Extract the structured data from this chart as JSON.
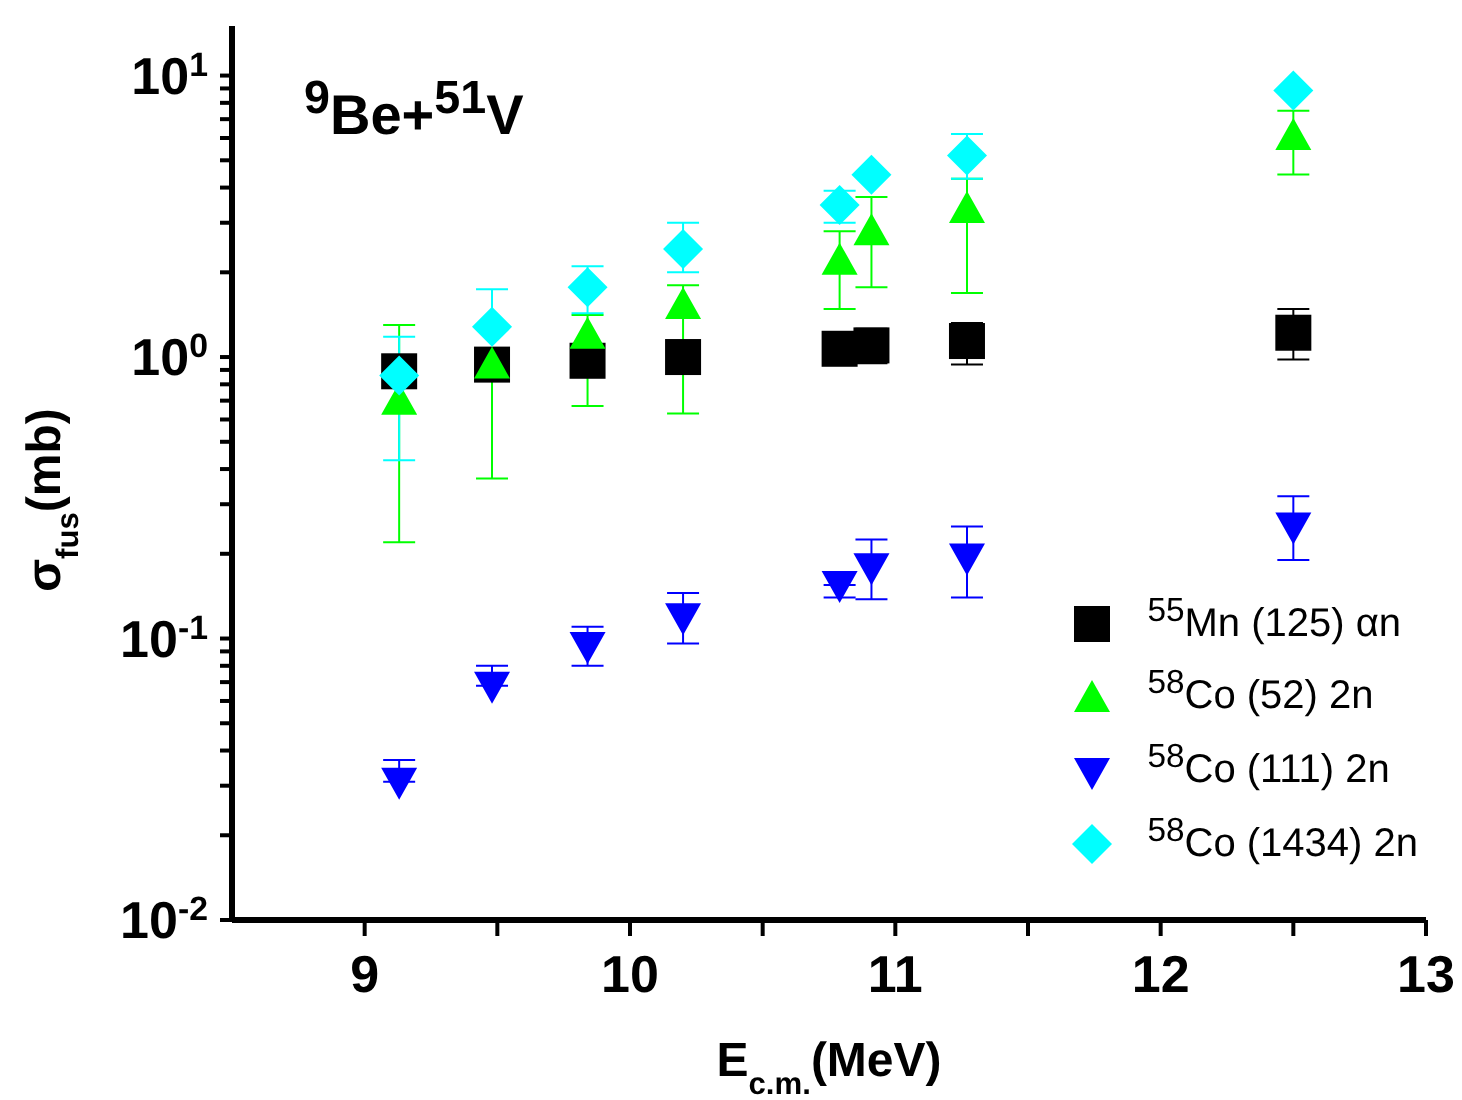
{
  "chart_data": {
    "type": "scatter",
    "xlabel": "E$_{c.m.}$(MeV)",
    "ylabel": "σ$_{fus}$(mb)",
    "annotations": [
      "$^{9}$Be+$^{51}$V"
    ],
    "x": [
      9.13,
      9.48,
      9.84,
      10.2,
      10.79,
      10.91,
      11.27,
      12.5
    ],
    "series": [
      {
        "name": "$^{55}$Mn (125) αn",
        "color": "#000000",
        "marker": "square",
        "values": [
          0.89,
          0.94,
          0.97,
          1.0,
          1.07,
          1.1,
          1.14,
          1.22
        ],
        "errors": [
          null,
          null,
          null,
          null,
          null,
          [
            0.95,
            1.26
          ],
          [
            0.94,
            1.32
          ],
          [
            0.98,
            1.48
          ]
        ]
      },
      {
        "name": "$^{58}$Co (52) 2n",
        "color": "#00ff00",
        "marker": "triangle",
        "values": [
          0.7,
          0.94,
          1.2,
          1.53,
          2.2,
          2.8,
          3.36,
          6.1
        ],
        "errors": [
          [
            0.22,
            1.3
          ],
          [
            0.37,
            1.0
          ],
          [
            0.67,
            1.41
          ],
          [
            0.63,
            1.8
          ],
          [
            1.48,
            2.8
          ],
          [
            1.77,
            3.7
          ],
          [
            1.69,
            4.3
          ],
          [
            4.45,
            7.5
          ]
        ]
      },
      {
        "name": "$^{58}$Co (111) 2n",
        "color": "#0000ff",
        "marker": "triangle-down",
        "values": [
          0.031,
          0.068,
          0.094,
          0.119,
          0.155,
          0.179,
          0.194,
          0.25
        ],
        "errors": [
          [
            0.031,
            0.037
          ],
          [
            0.068,
            0.08
          ],
          [
            0.08,
            0.11
          ],
          [
            0.096,
            0.145
          ],
          [
            0.14,
            0.155
          ],
          [
            0.138,
            0.225
          ],
          [
            0.14,
            0.25
          ],
          [
            0.19,
            0.32
          ]
        ]
      },
      {
        "name": "$^{58}$Co (1434) 2n",
        "color": "#00ffff",
        "marker": "diamond",
        "values": [
          0.86,
          1.28,
          1.77,
          2.42,
          3.47,
          4.44,
          5.2,
          8.85
        ],
        "errors": [
          [
            0.43,
            1.18
          ],
          [
            1.28,
            1.74
          ],
          [
            1.43,
            2.1
          ],
          [
            2.0,
            3.0
          ],
          [
            3.0,
            3.9
          ],
          null,
          [
            4.3,
            6.2
          ],
          null
        ]
      }
    ],
    "xlim": [
      8.5,
      13
    ],
    "xticks": [
      9,
      {
        "value": 9.5,
        "label": null
      },
      10,
      {
        "value": 10.5,
        "label": null
      },
      11,
      {
        "value": 11.5,
        "label": null
      },
      12,
      {
        "value": 12.5,
        "label": null
      },
      13
    ],
    "ylim": [
      0.01,
      15
    ],
    "yticks": [
      {
        "value": 0.01,
        "label": "10$^{-2}$"
      },
      {
        "value": 0.02,
        "label": null
      },
      {
        "value": 0.03,
        "label": null
      },
      {
        "value": 0.04,
        "label": null
      },
      {
        "value": 0.05,
        "label": null
      },
      {
        "value": 0.06,
        "label": null
      },
      {
        "value": 0.07,
        "label": null
      },
      {
        "value": 0.08,
        "label": null
      },
      {
        "value": 0.09,
        "label": null
      },
      {
        "value": 0.1,
        "label": "10$^{-1}$"
      },
      {
        "value": 0.2,
        "label": null
      },
      {
        "value": 0.3,
        "label": null
      },
      {
        "value": 0.4,
        "label": null
      },
      {
        "value": 0.5,
        "label": null
      },
      {
        "value": 0.6,
        "label": null
      },
      {
        "value": 0.7,
        "label": null
      },
      {
        "value": 0.8,
        "label": null
      },
      {
        "value": 0.9,
        "label": null
      },
      {
        "value": 1,
        "label": "10$^{0}$"
      },
      {
        "value": 2,
        "label": null
      },
      {
        "value": 3,
        "label": null
      },
      {
        "value": 4,
        "label": null
      },
      {
        "value": 5,
        "label": null
      },
      {
        "value": 6,
        "label": null
      },
      {
        "value": 7,
        "label": null
      },
      {
        "value": 8,
        "label": null
      },
      {
        "value": 9,
        "label": null
      },
      {
        "value": 10,
        "label": "10$^{1}$"
      }
    ],
    "log": "y",
    "grid": false,
    "legend": "bottom right"
  }
}
